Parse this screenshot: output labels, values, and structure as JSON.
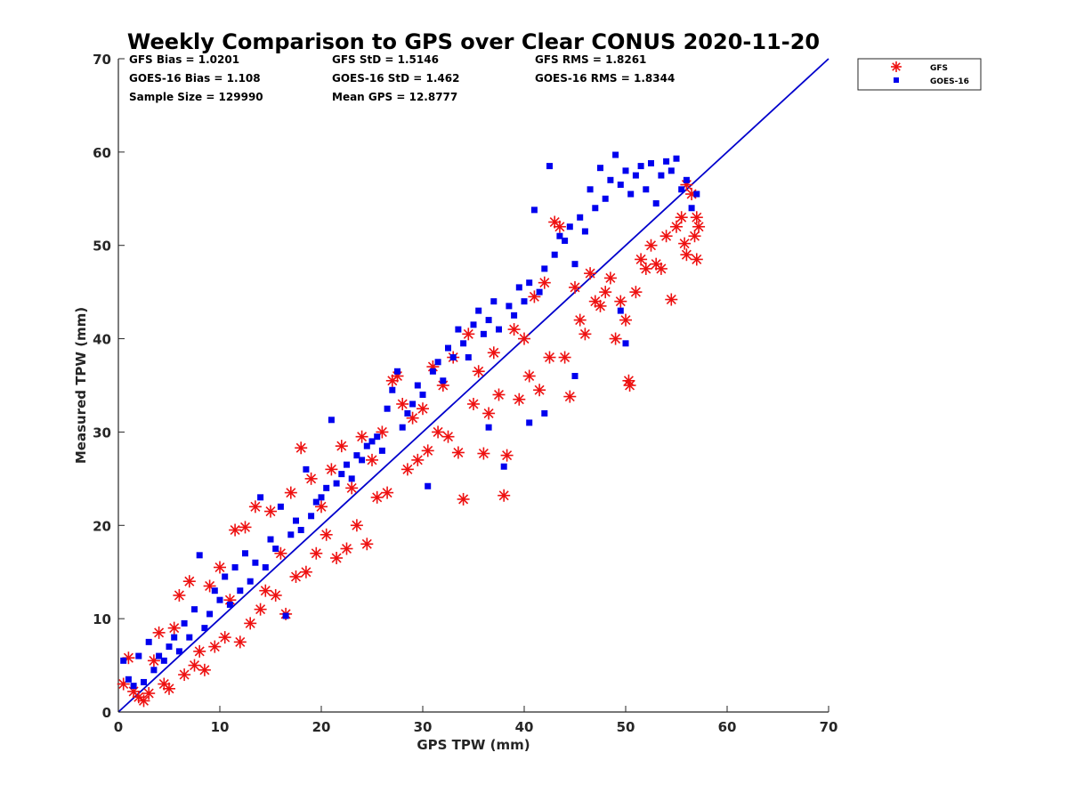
{
  "chart_data": {
    "type": "scatter",
    "title": "Weekly Comparison to GPS over Clear CONUS 2020-11-20",
    "xlabel": "GPS TPW (mm)",
    "ylabel": "Measured TPW (mm)",
    "xlim": [
      0,
      70
    ],
    "ylim": [
      0,
      70
    ],
    "xticks": [
      "0",
      "10",
      "20",
      "30",
      "40",
      "50",
      "60",
      "70"
    ],
    "yticks": [
      "0",
      "10",
      "20",
      "30",
      "40",
      "50",
      "60",
      "70"
    ],
    "grid": false,
    "legend_position": "outside-top-right",
    "stats": [
      {
        "label": "GFS Bias = 1.0201",
        "row": 0,
        "col": 0
      },
      {
        "label": "GFS StD = 1.5146",
        "row": 0,
        "col": 1
      },
      {
        "label": "GFS RMS = 1.8261",
        "row": 0,
        "col": 2
      },
      {
        "label": "GOES-16 Bias = 1.108",
        "row": 1,
        "col": 0
      },
      {
        "label": "GOES-16 StD = 1.462",
        "row": 1,
        "col": 1
      },
      {
        "label": "GOES-16 RMS = 1.8344",
        "row": 1,
        "col": 2
      },
      {
        "label": "Sample Size = 129990",
        "row": 2,
        "col": 0
      },
      {
        "label": "Mean GPS = 12.8777",
        "row": 2,
        "col": 1
      }
    ],
    "reference_line": {
      "x": [
        0,
        70
      ],
      "y": [
        0,
        70
      ],
      "color": "#0000cc"
    },
    "series": [
      {
        "name": "GFS",
        "marker": "asterisk",
        "color": "#ee1111",
        "points": [
          [
            0.5,
            3.0
          ],
          [
            1.0,
            5.8
          ],
          [
            1.5,
            2.2
          ],
          [
            2.0,
            1.6
          ],
          [
            2.5,
            1.2
          ],
          [
            3.0,
            2.0
          ],
          [
            3.5,
            5.5
          ],
          [
            4.0,
            8.5
          ],
          [
            4.5,
            3.0
          ],
          [
            5.0,
            2.5
          ],
          [
            5.5,
            9.0
          ],
          [
            6.0,
            12.5
          ],
          [
            6.5,
            4.0
          ],
          [
            7.0,
            14.0
          ],
          [
            7.5,
            5.0
          ],
          [
            8.0,
            6.5
          ],
          [
            8.5,
            4.5
          ],
          [
            9.0,
            13.5
          ],
          [
            9.5,
            7.0
          ],
          [
            10.0,
            15.5
          ],
          [
            10.5,
            8.0
          ],
          [
            11.0,
            12.0
          ],
          [
            11.5,
            19.5
          ],
          [
            12.0,
            7.5
          ],
          [
            12.5,
            19.8
          ],
          [
            13.0,
            9.5
          ],
          [
            13.5,
            22.0
          ],
          [
            14.0,
            11.0
          ],
          [
            14.5,
            13.0
          ],
          [
            15.0,
            21.5
          ],
          [
            15.5,
            12.5
          ],
          [
            16.0,
            17.0
          ],
          [
            16.5,
            10.5
          ],
          [
            17.0,
            23.5
          ],
          [
            17.5,
            14.5
          ],
          [
            18.0,
            28.3
          ],
          [
            18.5,
            15.0
          ],
          [
            19.0,
            25.0
          ],
          [
            19.5,
            17.0
          ],
          [
            20.0,
            22.0
          ],
          [
            20.5,
            19.0
          ],
          [
            21.0,
            26.0
          ],
          [
            21.5,
            16.5
          ],
          [
            22.0,
            28.5
          ],
          [
            22.5,
            17.5
          ],
          [
            23.0,
            24.0
          ],
          [
            23.5,
            20.0
          ],
          [
            24.0,
            29.5
          ],
          [
            24.5,
            18.0
          ],
          [
            25.0,
            27.0
          ],
          [
            25.5,
            23.0
          ],
          [
            26.0,
            30.0
          ],
          [
            26.5,
            23.5
          ],
          [
            27.0,
            35.5
          ],
          [
            27.5,
            36.0
          ],
          [
            28.0,
            33.0
          ],
          [
            28.5,
            26.0
          ],
          [
            29.0,
            31.5
          ],
          [
            29.5,
            27.0
          ],
          [
            30.0,
            32.5
          ],
          [
            30.5,
            28.0
          ],
          [
            31.0,
            37.0
          ],
          [
            31.5,
            30.0
          ],
          [
            32.0,
            35.0
          ],
          [
            32.5,
            29.5
          ],
          [
            33.0,
            38.0
          ],
          [
            33.5,
            27.8
          ],
          [
            34.0,
            22.8
          ],
          [
            34.5,
            40.5
          ],
          [
            35.0,
            33.0
          ],
          [
            35.5,
            36.5
          ],
          [
            36.0,
            27.7
          ],
          [
            36.5,
            32.0
          ],
          [
            37.0,
            38.5
          ],
          [
            37.5,
            34.0
          ],
          [
            38.0,
            23.2
          ],
          [
            38.3,
            27.5
          ],
          [
            39.0,
            41.0
          ],
          [
            39.5,
            33.5
          ],
          [
            40.0,
            40.0
          ],
          [
            40.5,
            36.0
          ],
          [
            41.0,
            44.5
          ],
          [
            41.5,
            34.5
          ],
          [
            42.0,
            46.0
          ],
          [
            42.5,
            38.0
          ],
          [
            43.0,
            52.5
          ],
          [
            43.5,
            52.0
          ],
          [
            44.0,
            38.0
          ],
          [
            44.5,
            33.8
          ],
          [
            45.0,
            45.5
          ],
          [
            45.5,
            42.0
          ],
          [
            46.0,
            40.5
          ],
          [
            46.5,
            47.0
          ],
          [
            47.0,
            44.0
          ],
          [
            47.5,
            43.5
          ],
          [
            48.0,
            45.0
          ],
          [
            48.5,
            46.5
          ],
          [
            49.0,
            40.0
          ],
          [
            49.5,
            44.0
          ],
          [
            50.0,
            42.0
          ],
          [
            50.3,
            35.5
          ],
          [
            50.4,
            35.0
          ],
          [
            51.0,
            45.0
          ],
          [
            51.5,
            48.5
          ],
          [
            52.0,
            47.5
          ],
          [
            52.5,
            50.0
          ],
          [
            53.0,
            48.0
          ],
          [
            53.5,
            47.5
          ],
          [
            54.0,
            51.0
          ],
          [
            54.5,
            44.2
          ],
          [
            55.0,
            52.0
          ],
          [
            55.5,
            53.0
          ],
          [
            56.0,
            49.0
          ],
          [
            56.5,
            55.5
          ],
          [
            57.0,
            48.5
          ],
          [
            57.2,
            52.0
          ],
          [
            56.8,
            51.0
          ],
          [
            55.8,
            50.2
          ],
          [
            57.0,
            53.0
          ],
          [
            56.0,
            56.5
          ]
        ]
      },
      {
        "name": "GOES-16",
        "marker": "square",
        "color": "#0000ee",
        "points": [
          [
            0.5,
            5.5
          ],
          [
            1.0,
            3.5
          ],
          [
            1.5,
            2.8
          ],
          [
            2.0,
            6.0
          ],
          [
            2.5,
            3.2
          ],
          [
            3.0,
            7.5
          ],
          [
            3.5,
            4.5
          ],
          [
            4.0,
            6.0
          ],
          [
            4.5,
            5.5
          ],
          [
            5.0,
            7.0
          ],
          [
            5.5,
            8.0
          ],
          [
            6.0,
            6.5
          ],
          [
            6.5,
            9.5
          ],
          [
            7.0,
            8.0
          ],
          [
            7.5,
            11.0
          ],
          [
            8.0,
            16.8
          ],
          [
            8.5,
            9.0
          ],
          [
            9.0,
            10.5
          ],
          [
            9.5,
            13.0
          ],
          [
            10.0,
            12.0
          ],
          [
            10.5,
            14.5
          ],
          [
            11.0,
            11.5
          ],
          [
            11.5,
            15.5
          ],
          [
            12.0,
            13.0
          ],
          [
            12.5,
            17.0
          ],
          [
            13.0,
            14.0
          ],
          [
            13.5,
            16.0
          ],
          [
            14.0,
            23.0
          ],
          [
            14.5,
            15.5
          ],
          [
            15.0,
            18.5
          ],
          [
            15.5,
            17.5
          ],
          [
            16.0,
            22.0
          ],
          [
            16.5,
            10.3
          ],
          [
            17.0,
            19.0
          ],
          [
            17.5,
            20.5
          ],
          [
            18.0,
            19.5
          ],
          [
            18.5,
            26.0
          ],
          [
            19.0,
            21.0
          ],
          [
            19.5,
            22.5
          ],
          [
            20.0,
            23.0
          ],
          [
            20.5,
            24.0
          ],
          [
            21.0,
            31.3
          ],
          [
            21.5,
            24.5
          ],
          [
            22.0,
            25.5
          ],
          [
            22.5,
            26.5
          ],
          [
            23.0,
            25.0
          ],
          [
            23.5,
            27.5
          ],
          [
            24.0,
            27.0
          ],
          [
            24.5,
            28.5
          ],
          [
            25.0,
            29.0
          ],
          [
            25.5,
            29.5
          ],
          [
            26.0,
            28.0
          ],
          [
            26.5,
            32.5
          ],
          [
            27.0,
            34.5
          ],
          [
            27.5,
            36.5
          ],
          [
            28.0,
            30.5
          ],
          [
            28.5,
            32.0
          ],
          [
            29.0,
            33.0
          ],
          [
            29.5,
            35.0
          ],
          [
            30.0,
            34.0
          ],
          [
            30.5,
            24.2
          ],
          [
            31.0,
            36.5
          ],
          [
            31.5,
            37.5
          ],
          [
            32.0,
            35.5
          ],
          [
            32.5,
            39.0
          ],
          [
            33.0,
            38.0
          ],
          [
            33.5,
            41.0
          ],
          [
            34.0,
            39.5
          ],
          [
            34.5,
            38.0
          ],
          [
            35.0,
            41.5
          ],
          [
            35.5,
            43.0
          ],
          [
            36.0,
            40.5
          ],
          [
            36.5,
            42.0
          ],
          [
            37.0,
            44.0
          ],
          [
            37.5,
            41.0
          ],
          [
            38.0,
            26.3
          ],
          [
            38.5,
            43.5
          ],
          [
            39.0,
            42.5
          ],
          [
            39.5,
            45.5
          ],
          [
            40.0,
            44.0
          ],
          [
            40.5,
            46.0
          ],
          [
            41.0,
            53.8
          ],
          [
            41.5,
            45.0
          ],
          [
            42.0,
            47.5
          ],
          [
            42.5,
            58.5
          ],
          [
            43.0,
            49.0
          ],
          [
            43.5,
            51.0
          ],
          [
            44.0,
            50.5
          ],
          [
            44.5,
            52.0
          ],
          [
            45.0,
            48.0
          ],
          [
            45.5,
            53.0
          ],
          [
            46.0,
            51.5
          ],
          [
            46.5,
            56.0
          ],
          [
            47.0,
            54.0
          ],
          [
            47.5,
            58.3
          ],
          [
            48.0,
            55.0
          ],
          [
            48.5,
            57.0
          ],
          [
            49.0,
            59.7
          ],
          [
            49.5,
            56.5
          ],
          [
            50.0,
            58.0
          ],
          [
            50.5,
            55.5
          ],
          [
            51.0,
            57.5
          ],
          [
            51.5,
            58.5
          ],
          [
            52.0,
            56.0
          ],
          [
            52.5,
            58.8
          ],
          [
            53.0,
            54.5
          ],
          [
            53.5,
            57.5
          ],
          [
            54.0,
            59.0
          ],
          [
            54.5,
            58.0
          ],
          [
            55.0,
            59.3
          ],
          [
            55.5,
            56.0
          ],
          [
            56.0,
            57.0
          ],
          [
            57.0,
            55.5
          ],
          [
            56.5,
            54.0
          ],
          [
            50.0,
            39.5
          ],
          [
            49.5,
            43.0
          ],
          [
            45.0,
            36.0
          ],
          [
            42.0,
            32.0
          ],
          [
            40.5,
            31.0
          ],
          [
            36.5,
            30.5
          ]
        ]
      }
    ]
  }
}
